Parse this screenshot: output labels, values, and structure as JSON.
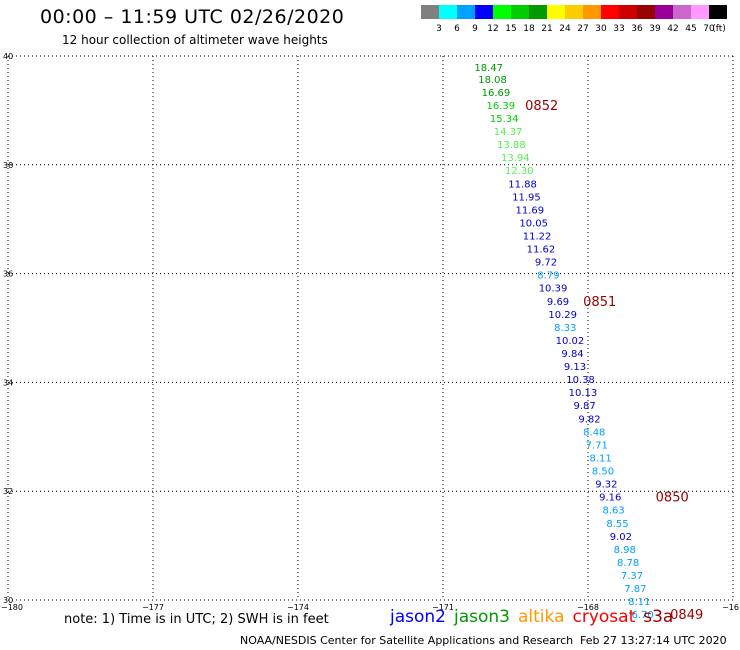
{
  "title": "00:00 – 11:59 UTC 02/26/2020",
  "subtitle": "12 hour collection of altimeter wave heights",
  "colorbar": {
    "ticks": [
      "3",
      "6",
      "9",
      "12",
      "15",
      "18",
      "21",
      "24",
      "27",
      "30",
      "33",
      "36",
      "39",
      "42",
      "45",
      "70"
    ],
    "unit": "(ft)",
    "colors": [
      "#808080",
      "#00ffff",
      "#00a0ff",
      "#0000ff",
      "#00ff00",
      "#00cc00",
      "#009900",
      "#ffff00",
      "#ffcc00",
      "#ff9900",
      "#ff0000",
      "#cc0000",
      "#990000",
      "#990099",
      "#cc66cc",
      "#ff99ff",
      "#000000"
    ]
  },
  "axes": {
    "lat_labels": [
      "40",
      "38",
      "36",
      "34",
      "32",
      "30"
    ],
    "lon_labels": [
      "−180",
      "−177",
      "−174",
      "−171",
      "−168",
      "−16"
    ]
  },
  "chart_data": {
    "type": "map-track",
    "x_unit": "longitude",
    "y_unit": "latitude",
    "xlim": [
      -180,
      -165
    ],
    "ylim": [
      30,
      40
    ],
    "readings": [
      {
        "value": "18.47",
        "lon": -170.35,
        "lat": 39.8,
        "color": "#009900"
      },
      {
        "value": "18.08",
        "lon": -170.27,
        "lat": 39.58,
        "color": "#009900"
      },
      {
        "value": "16.69",
        "lon": -170.2,
        "lat": 39.34,
        "color": "#009900"
      },
      {
        "value": "16.39",
        "lon": -170.1,
        "lat": 39.1,
        "color": "#00cc00"
      },
      {
        "value": "15.34",
        "lon": -170.03,
        "lat": 38.86,
        "color": "#00cc00"
      },
      {
        "value": "14.37",
        "lon": -169.95,
        "lat": 38.62,
        "color": "#55ee55"
      },
      {
        "value": "13.88",
        "lon": -169.88,
        "lat": 38.38,
        "color": "#55ee55"
      },
      {
        "value": "13.94",
        "lon": -169.8,
        "lat": 38.14,
        "color": "#55ee55"
      },
      {
        "value": "12.30",
        "lon": -169.72,
        "lat": 37.9,
        "color": "#55ee55"
      },
      {
        "value": "11.88",
        "lon": -169.65,
        "lat": 37.66,
        "color": "#0000cc"
      },
      {
        "value": "11.95",
        "lon": -169.57,
        "lat": 37.42,
        "color": "#0000cc"
      },
      {
        "value": "11.69",
        "lon": -169.5,
        "lat": 37.18,
        "color": "#0000cc"
      },
      {
        "value": "10.05",
        "lon": -169.42,
        "lat": 36.94,
        "color": "#0000cc"
      },
      {
        "value": "11.22",
        "lon": -169.35,
        "lat": 36.7,
        "color": "#0000cc"
      },
      {
        "value": "11.62",
        "lon": -169.27,
        "lat": 36.46,
        "color": "#0000cc"
      },
      {
        "value": "9.72",
        "lon": -169.1,
        "lat": 36.22,
        "color": "#0000cc"
      },
      {
        "value": "8.79",
        "lon": -169.05,
        "lat": 35.98,
        "color": "#00a0ff"
      },
      {
        "value": "10.39",
        "lon": -169.02,
        "lat": 35.74,
        "color": "#0000cc"
      },
      {
        "value": "9.69",
        "lon": -168.85,
        "lat": 35.5,
        "color": "#0000cc"
      },
      {
        "value": "10.29",
        "lon": -168.82,
        "lat": 35.26,
        "color": "#0000cc"
      },
      {
        "value": "8.33",
        "lon": -168.7,
        "lat": 35.02,
        "color": "#00a0ff"
      },
      {
        "value": "10.02",
        "lon": -168.67,
        "lat": 34.78,
        "color": "#0000cc"
      },
      {
        "value": "9.84",
        "lon": -168.55,
        "lat": 34.54,
        "color": "#0000cc"
      },
      {
        "value": "9.13",
        "lon": -168.5,
        "lat": 34.3,
        "color": "#0000cc"
      },
      {
        "value": "10.38",
        "lon": -168.45,
        "lat": 34.06,
        "color": "#0000cc"
      },
      {
        "value": "10.13",
        "lon": -168.4,
        "lat": 33.82,
        "color": "#0000cc"
      },
      {
        "value": "9.87",
        "lon": -168.3,
        "lat": 33.58,
        "color": "#0000cc"
      },
      {
        "value": "9.82",
        "lon": -168.2,
        "lat": 33.34,
        "color": "#0000cc"
      },
      {
        "value": "8.48",
        "lon": -168.1,
        "lat": 33.1,
        "color": "#00a0ff"
      },
      {
        "value": "7.71",
        "lon": -168.05,
        "lat": 32.86,
        "color": "#00a0ff"
      },
      {
        "value": "8.11",
        "lon": -167.97,
        "lat": 32.62,
        "color": "#00a0ff"
      },
      {
        "value": "8.50",
        "lon": -167.92,
        "lat": 32.38,
        "color": "#00a0ff"
      },
      {
        "value": "9.32",
        "lon": -167.85,
        "lat": 32.14,
        "color": "#0000cc"
      },
      {
        "value": "9.16",
        "lon": -167.77,
        "lat": 31.9,
        "color": "#0000cc"
      },
      {
        "value": "8.63",
        "lon": -167.7,
        "lat": 31.66,
        "color": "#00a0ff"
      },
      {
        "value": "8.55",
        "lon": -167.62,
        "lat": 31.42,
        "color": "#00a0ff"
      },
      {
        "value": "9.02",
        "lon": -167.55,
        "lat": 31.18,
        "color": "#0000cc"
      },
      {
        "value": "8.98",
        "lon": -167.47,
        "lat": 30.94,
        "color": "#00a0ff"
      },
      {
        "value": "8.78",
        "lon": -167.4,
        "lat": 30.7,
        "color": "#00a0ff"
      },
      {
        "value": "7.37",
        "lon": -167.32,
        "lat": 30.46,
        "color": "#00a0ff"
      },
      {
        "value": "7.87",
        "lon": -167.25,
        "lat": 30.22,
        "color": "#00a0ff"
      },
      {
        "value": "8.11",
        "lon": -167.17,
        "lat": 29.98,
        "color": "#00a0ff"
      },
      {
        "value": "6.70",
        "lon": -167.1,
        "lat": 29.74,
        "color": "#00a0ff"
      }
    ],
    "time_labels": [
      {
        "text": "0852",
        "lon": -169.3,
        "lat": 39.1,
        "color": "#990000"
      },
      {
        "text": "0851",
        "lon": -168.1,
        "lat": 35.5,
        "color": "#990000"
      },
      {
        "text": "0850",
        "lon": -166.6,
        "lat": 31.9,
        "color": "#990000"
      },
      {
        "text": "0849",
        "lon": -166.3,
        "lat": 29.74,
        "color": "#990000"
      }
    ]
  },
  "note": "note:  1) Time is in UTC;  2) SWH is in feet",
  "satellites": [
    {
      "name": "jason2",
      "color": "#0000ff"
    },
    {
      "name": "jason3",
      "color": "#009900"
    },
    {
      "name": "altika",
      "color": "#ff9900"
    },
    {
      "name": "cryosat",
      "color": "#ff0000"
    },
    {
      "name": "s3a",
      "color": "#990000"
    }
  ],
  "footer": {
    "left": "NOAA/NESDIS Center for Satellite Applications and Research",
    "right": "Feb 27 13:27:14 UTC 2020"
  }
}
